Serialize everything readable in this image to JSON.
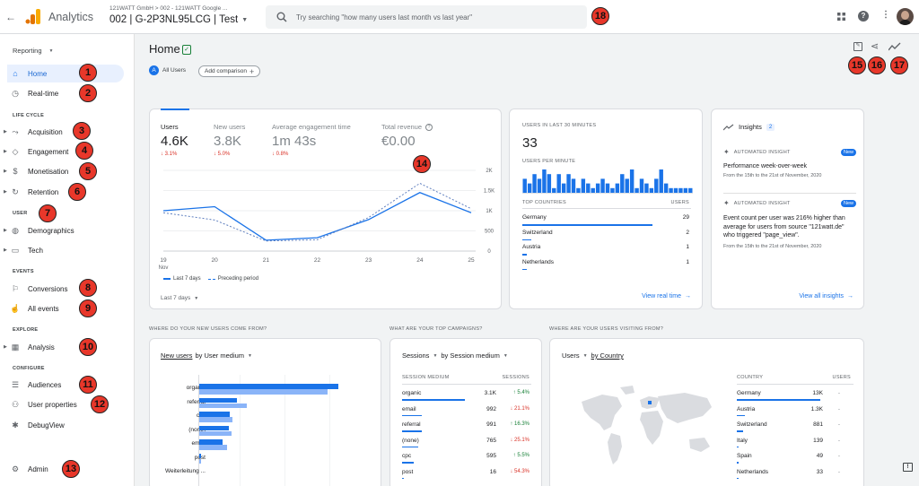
{
  "app": {
    "title": "Analytics",
    "account_line": "121WATT GmbH  >  002 - 121WATT Google ...",
    "property": "002 | G-2P3NL95LCG | Test"
  },
  "search": {
    "placeholder": "Try searching \"how many users last month vs last year\""
  },
  "sidebar": {
    "reporting": "Reporting",
    "home": "Home",
    "realtime": "Real-time",
    "sec_lifecycle": "LIFE CYCLE",
    "acquisition": "Acquisition",
    "engagement": "Engagement",
    "monetisation": "Monetisation",
    "retention": "Retention",
    "sec_user": "USER",
    "demographics": "Demographics",
    "tech": "Tech",
    "sec_events": "EVENTS",
    "conversions": "Conversions",
    "all_events": "All events",
    "sec_explore": "EXPLORE",
    "analysis": "Analysis",
    "sec_configure": "CONFIGURE",
    "audiences": "Audiences",
    "user_properties": "User properties",
    "debugview": "DebugView",
    "admin": "Admin"
  },
  "badges": [
    "1",
    "2",
    "3",
    "4",
    "5",
    "6",
    "7",
    "8",
    "9",
    "10",
    "11",
    "12",
    "13",
    "14",
    "15",
    "16",
    "17",
    "18"
  ],
  "page": {
    "title": "Home",
    "segment_letter": "A",
    "segment": "All Users",
    "add_comparison": "Add comparison"
  },
  "metrics": [
    {
      "label": "Users",
      "value": "4.6K",
      "change": "↓ 3.1%"
    },
    {
      "label": "New users",
      "value": "3.8K",
      "change": "↓ 5.0%"
    },
    {
      "label": "Average engagement time",
      "value": "1m 43s",
      "change": "↓ 0.8%"
    },
    {
      "label": "Total revenue",
      "value": "€0.00",
      "change": ""
    }
  ],
  "chart_data": {
    "type": "line",
    "x": [
      "19 Nov",
      "20",
      "21",
      "22",
      "23",
      "24",
      "25"
    ],
    "x_ticks": [
      "19",
      "20",
      "21",
      "22",
      "23",
      "24",
      "25"
    ],
    "x_sub": "Nov",
    "y_ticks": [
      "2K",
      "1.5K",
      "1K",
      "500",
      "0"
    ],
    "ylim": [
      0,
      2000
    ],
    "series": [
      {
        "name": "Last 7 days",
        "values": [
          1000,
          1100,
          270,
          330,
          780,
          1450,
          950
        ]
      },
      {
        "name": "Preceding period",
        "values": [
          950,
          770,
          250,
          280,
          830,
          1680,
          1050
        ]
      }
    ],
    "footer": "Last 7 days"
  },
  "realtime": {
    "title": "USERS IN LAST 30 MINUTES",
    "value": "33",
    "per_minute": "USERS PER MINUTE",
    "bars": [
      3,
      2,
      4,
      3,
      5,
      4,
      1,
      4,
      2,
      4,
      3,
      1,
      3,
      2,
      1,
      2,
      3,
      2,
      1,
      2,
      4,
      3,
      5,
      1,
      3,
      2,
      1,
      3,
      5,
      2,
      1,
      1,
      1,
      1,
      1
    ],
    "col_country": "TOP COUNTRIES",
    "col_users": "USERS",
    "rows": [
      {
        "name": "Germany",
        "value": "29",
        "share": 0.88
      },
      {
        "name": "Switzerland",
        "value": "2",
        "share": 0.06
      },
      {
        "name": "Austria",
        "value": "1",
        "share": 0.03
      },
      {
        "name": "Netherlands",
        "value": "1",
        "share": 0.03
      }
    ],
    "link": "View real time"
  },
  "insights": {
    "title": "Insights",
    "count": "2",
    "tag": "AUTOMATED INSIGHT",
    "new": "New",
    "items": [
      {
        "title": "Performance week-over-week",
        "date": "From the 15th to the 21st of November, 2020"
      },
      {
        "title": "Event count per user was 216% higher than average for users from source \"121watt.de\" who triggered \"page_view\".",
        "date": "From the 15th to the 21st of November, 2020"
      }
    ],
    "link": "View all insights"
  },
  "sections": {
    "new_users": "WHERE DO YOUR NEW USERS COME FROM?",
    "campaigns": "WHAT ARE YOUR TOP CAMPAIGNS?",
    "visiting": "WHERE ARE YOUR USERS VISITING FROM?"
  },
  "new_users_card": {
    "metric": "New users",
    "by": "by User medium",
    "categories": [
      "organic",
      "referral",
      "cpc",
      "(none)",
      "email",
      "post",
      "Weiterleitung ..."
    ],
    "current": [
      100,
      27,
      22,
      21,
      17,
      1,
      0
    ],
    "previous": [
      92,
      34,
      24,
      23,
      20,
      1,
      0
    ]
  },
  "campaigns_card": {
    "metric": "Sessions",
    "by": "by Session medium",
    "col1": "SESSION MEDIUM",
    "col2": "SESSIONS",
    "rows": [
      {
        "name": "organic",
        "value": "3.1K",
        "change": "↑ 5.4%",
        "up": true,
        "share": 1.0
      },
      {
        "name": "email",
        "value": "992",
        "change": "↓ 21.1%",
        "up": false,
        "share": 0.32
      },
      {
        "name": "referral",
        "value": "991",
        "change": "↑ 16.3%",
        "up": true,
        "share": 0.32
      },
      {
        "name": "(none)",
        "value": "765",
        "change": "↓ 25.1%",
        "up": false,
        "share": 0.25
      },
      {
        "name": "cpc",
        "value": "595",
        "change": "↑ 5.5%",
        "up": true,
        "share": 0.19
      },
      {
        "name": "post",
        "value": "16",
        "change": "↓ 54.3%",
        "up": false,
        "share": 0.01
      }
    ]
  },
  "countries_card": {
    "metric": "Users",
    "by": "by Country",
    "col1": "COUNTRY",
    "col2": "USERS",
    "rows": [
      {
        "name": "Germany",
        "value": "13K",
        "change": "-",
        "share": 1.0
      },
      {
        "name": "Austria",
        "value": "1.3K",
        "change": "-",
        "share": 0.1
      },
      {
        "name": "Switzerland",
        "value": "881",
        "change": "-",
        "share": 0.07
      },
      {
        "name": "Italy",
        "value": "139",
        "change": "-",
        "share": 0.01
      },
      {
        "name": "Spain",
        "value": "49",
        "change": "-",
        "share": 0.004
      },
      {
        "name": "Netherlands",
        "value": "33",
        "change": "-",
        "share": 0.003
      }
    ]
  },
  "colors": {
    "blue": "#1a73e8",
    "light_blue": "#8ab4f8",
    "red_badge": "#e8372a",
    "orange": "#f9ab00"
  }
}
